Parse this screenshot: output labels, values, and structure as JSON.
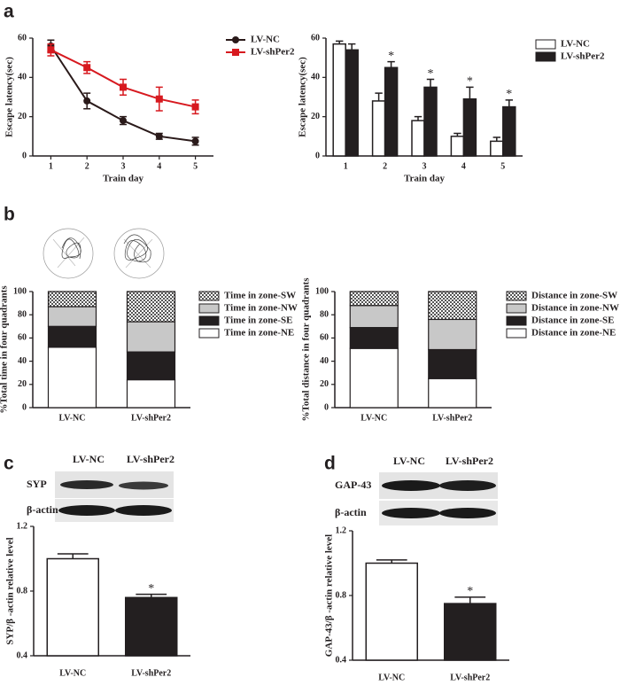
{
  "panels": [
    "a",
    "b",
    "c",
    "d"
  ],
  "blots": [
    {
      "columns": [
        "LV-NC",
        "LV-shPer2"
      ],
      "rows": [
        "SYP",
        "β-actin"
      ]
    },
    {
      "columns": [
        "LV-NC",
        "LV-shPer2"
      ],
      "rows": [
        "GAP-43",
        "β-actin"
      ]
    }
  ],
  "chart_data": [
    {
      "type": "line",
      "ylabel": "Escape latency(sec)",
      "xlabel": "Train day",
      "x": [
        1,
        2,
        3,
        4,
        5
      ],
      "xlim": [
        0.5,
        5.5
      ],
      "xticks": [
        1,
        2,
        3,
        4,
        5
      ],
      "ylim": [
        0,
        60
      ],
      "yticks": [
        0,
        20,
        40,
        60
      ],
      "series": [
        {
          "name": "LV-NC",
          "color": "#2a1a1a",
          "marker": "circle",
          "values": [
            56,
            28,
            18,
            10,
            7.5
          ],
          "errors": [
            3,
            4,
            2,
            1.5,
            2
          ]
        },
        {
          "name": "LV-shPer2",
          "color": "#d7191f",
          "marker": "square",
          "values": [
            54,
            45,
            35,
            29,
            25
          ],
          "errors": [
            3,
            3,
            4,
            6,
            3.5
          ]
        }
      ]
    },
    {
      "type": "bar",
      "ylabel": "Escape latency(sec)",
      "xlabel": "Train day",
      "categories": [
        "1",
        "2",
        "3",
        "4",
        "5"
      ],
      "ylim": [
        0,
        60
      ],
      "yticks": [
        0,
        20,
        40,
        60
      ],
      "series": [
        {
          "name": "LV-NC",
          "color": "#ffffff",
          "values": [
            57,
            28,
            18,
            10,
            7.5
          ],
          "errors": [
            1.5,
            4,
            2,
            1.5,
            2
          ]
        },
        {
          "name": "LV-shPer2",
          "color": "#231f20",
          "values": [
            54,
            45,
            35,
            29,
            25
          ],
          "errors": [
            3,
            3,
            4,
            6,
            3.5
          ],
          "significance": [
            null,
            "*",
            "*",
            "*",
            "*"
          ]
        }
      ]
    },
    {
      "type": "stacked_bar",
      "ylabel": "%Total time in four quadrants",
      "categories": [
        "LV-NC",
        "LV-shPer2"
      ],
      "ylim": [
        0,
        100
      ],
      "yticks": [
        0,
        20,
        40,
        60,
        80,
        100
      ],
      "series": [
        {
          "name": "Time in zone-NE",
          "color": "#ffffff",
          "values": [
            52,
            24
          ]
        },
        {
          "name": "Time in zone-SE",
          "color": "#231f20",
          "values": [
            18,
            24
          ]
        },
        {
          "name": "Time in zone-NW",
          "color": "#c8c8c8",
          "values": [
            17,
            26
          ]
        },
        {
          "name": "Time in zone-SW",
          "color": "#555555",
          "pattern": "checkered",
          "values": [
            13,
            26
          ]
        }
      ]
    },
    {
      "type": "stacked_bar",
      "ylabel": "%Total distance in four quadrants",
      "categories": [
        "LV-NC",
        "LV-shPer2"
      ],
      "ylim": [
        0,
        100
      ],
      "yticks": [
        0,
        20,
        40,
        60,
        80,
        100
      ],
      "series": [
        {
          "name": "Distance in zone-NE",
          "color": "#ffffff",
          "values": [
            51,
            25
          ]
        },
        {
          "name": "Distance in zone-SE",
          "color": "#231f20",
          "values": [
            18,
            25
          ]
        },
        {
          "name": "Distance in zone-NW",
          "color": "#c8c8c8",
          "values": [
            19,
            26
          ]
        },
        {
          "name": "Distance in zone-SW",
          "color": "#555555",
          "pattern": "checkered",
          "values": [
            12,
            24
          ]
        }
      ]
    },
    {
      "type": "bar",
      "ylabel": "SYP/β -actin relative level",
      "categories": [
        "LV-NC",
        "LV-shPer2"
      ],
      "ylim": [
        0.4,
        1.2
      ],
      "yticks": [
        0.4,
        0.8,
        1.2
      ],
      "values": [
        1.0,
        0.76
      ],
      "errors": [
        0.03,
        0.02
      ],
      "colors": [
        "#ffffff",
        "#231f20"
      ],
      "significance": [
        null,
        "*"
      ]
    },
    {
      "type": "bar",
      "ylabel": "GAP-43/β -actin relative level",
      "categories": [
        "LV-NC",
        "LV-shPer2"
      ],
      "ylim": [
        0.4,
        1.2
      ],
      "yticks": [
        0.4,
        0.8,
        1.2
      ],
      "values": [
        1.0,
        0.75
      ],
      "errors": [
        0.02,
        0.04
      ],
      "colors": [
        "#ffffff",
        "#231f20"
      ],
      "significance": [
        null,
        "*"
      ]
    }
  ]
}
